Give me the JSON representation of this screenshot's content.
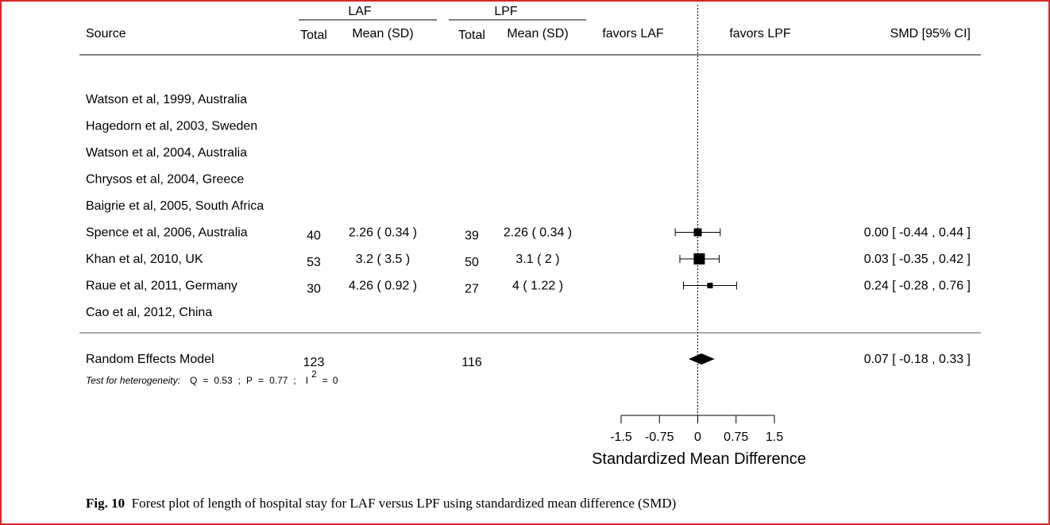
{
  "chart_data": {
    "type": "forest",
    "headers": {
      "source": "Source",
      "group1": "LAF",
      "group2": "LPF",
      "total": "Total",
      "mean_sd": "Mean (SD)",
      "favors_left": "favors LAF",
      "favors_right": "favors LPF",
      "effect": "SMD [95% CI]"
    },
    "studies": [
      {
        "source": "Watson et al, 1999, Australia",
        "n1": "",
        "ms1": "",
        "n2": "",
        "ms2": "",
        "smd": null,
        "lo": null,
        "hi": null,
        "weight": 0,
        "ci_text": ""
      },
      {
        "source": "Hagedorn et al, 2003, Sweden",
        "n1": "",
        "ms1": "",
        "n2": "",
        "ms2": "",
        "smd": null,
        "lo": null,
        "hi": null,
        "weight": 0,
        "ci_text": ""
      },
      {
        "source": "Watson et al, 2004, Australia",
        "n1": "",
        "ms1": "",
        "n2": "",
        "ms2": "",
        "smd": null,
        "lo": null,
        "hi": null,
        "weight": 0,
        "ci_text": ""
      },
      {
        "source": "Chrysos et al, 2004, Greece",
        "n1": "",
        "ms1": "",
        "n2": "",
        "ms2": "",
        "smd": null,
        "lo": null,
        "hi": null,
        "weight": 0,
        "ci_text": ""
      },
      {
        "source": "Baigrie et al, 2005, South Africa",
        "n1": "",
        "ms1": "",
        "n2": "",
        "ms2": "",
        "smd": null,
        "lo": null,
        "hi": null,
        "weight": 0,
        "ci_text": ""
      },
      {
        "source": "Spence et al, 2006, Australia",
        "n1": "40",
        "ms1": "2.26 ( 0.34 )",
        "n2": "39",
        "ms2": "2.26 ( 0.34 )",
        "smd": 0.0,
        "lo": -0.44,
        "hi": 0.44,
        "weight": 0.6,
        "ci_text": "0.00 [ -0.44 , 0.44 ]"
      },
      {
        "source": "Khan et al, 2010, UK",
        "n1": "53",
        "ms1": "3.2 ( 3.5 )",
        "n2": "50",
        "ms2": "3.1 ( 2 )",
        "smd": 0.03,
        "lo": -0.35,
        "hi": 0.42,
        "weight": 1.0,
        "ci_text": "0.03 [ -0.35 , 0.42 ]"
      },
      {
        "source": "Raue et al, 2011, Germany",
        "n1": "30",
        "ms1": "4.26 ( 0.92 )",
        "n2": "27",
        "ms2": "4 ( 1.22 )",
        "smd": 0.24,
        "lo": -0.28,
        "hi": 0.76,
        "weight": 0.3,
        "ci_text": "0.24 [ -0.28 , 0.76 ]"
      },
      {
        "source": "Cao et al, 2012, China",
        "n1": "",
        "ms1": "",
        "n2": "",
        "ms2": "",
        "smd": null,
        "lo": null,
        "hi": null,
        "weight": 0,
        "ci_text": ""
      }
    ],
    "summary": {
      "label": "Random Effects Model",
      "n1": "123",
      "n2": "116",
      "smd": 0.07,
      "lo": -0.18,
      "hi": 0.33,
      "ci_text": "0.07 [ -0.18 , 0.33 ]"
    },
    "heterogeneity": {
      "label": "Test for heterogeneity:",
      "q_label": "Q",
      "q": "0.53",
      "p_label": "P",
      "p": "0.77",
      "i2_label": "I",
      "i2_sup": "2",
      "i2": "0"
    },
    "x_axis": {
      "ticks": [
        -1.5,
        -0.75,
        0,
        0.75,
        1.5
      ],
      "tick_labels": [
        "-1.5",
        "-0.75",
        "0",
        "0.75",
        "1.5"
      ],
      "range": [
        -1.5,
        1.5
      ],
      "title": "Standardized Mean Difference"
    }
  },
  "caption": {
    "label": "Fig. 10",
    "text": "Forest plot of length of hospital stay for LAF versus LPF using standardized mean difference (SMD)"
  },
  "colors": {
    "frame": "#d9262b",
    "ink": "#000000",
    "separator": "#555555"
  }
}
